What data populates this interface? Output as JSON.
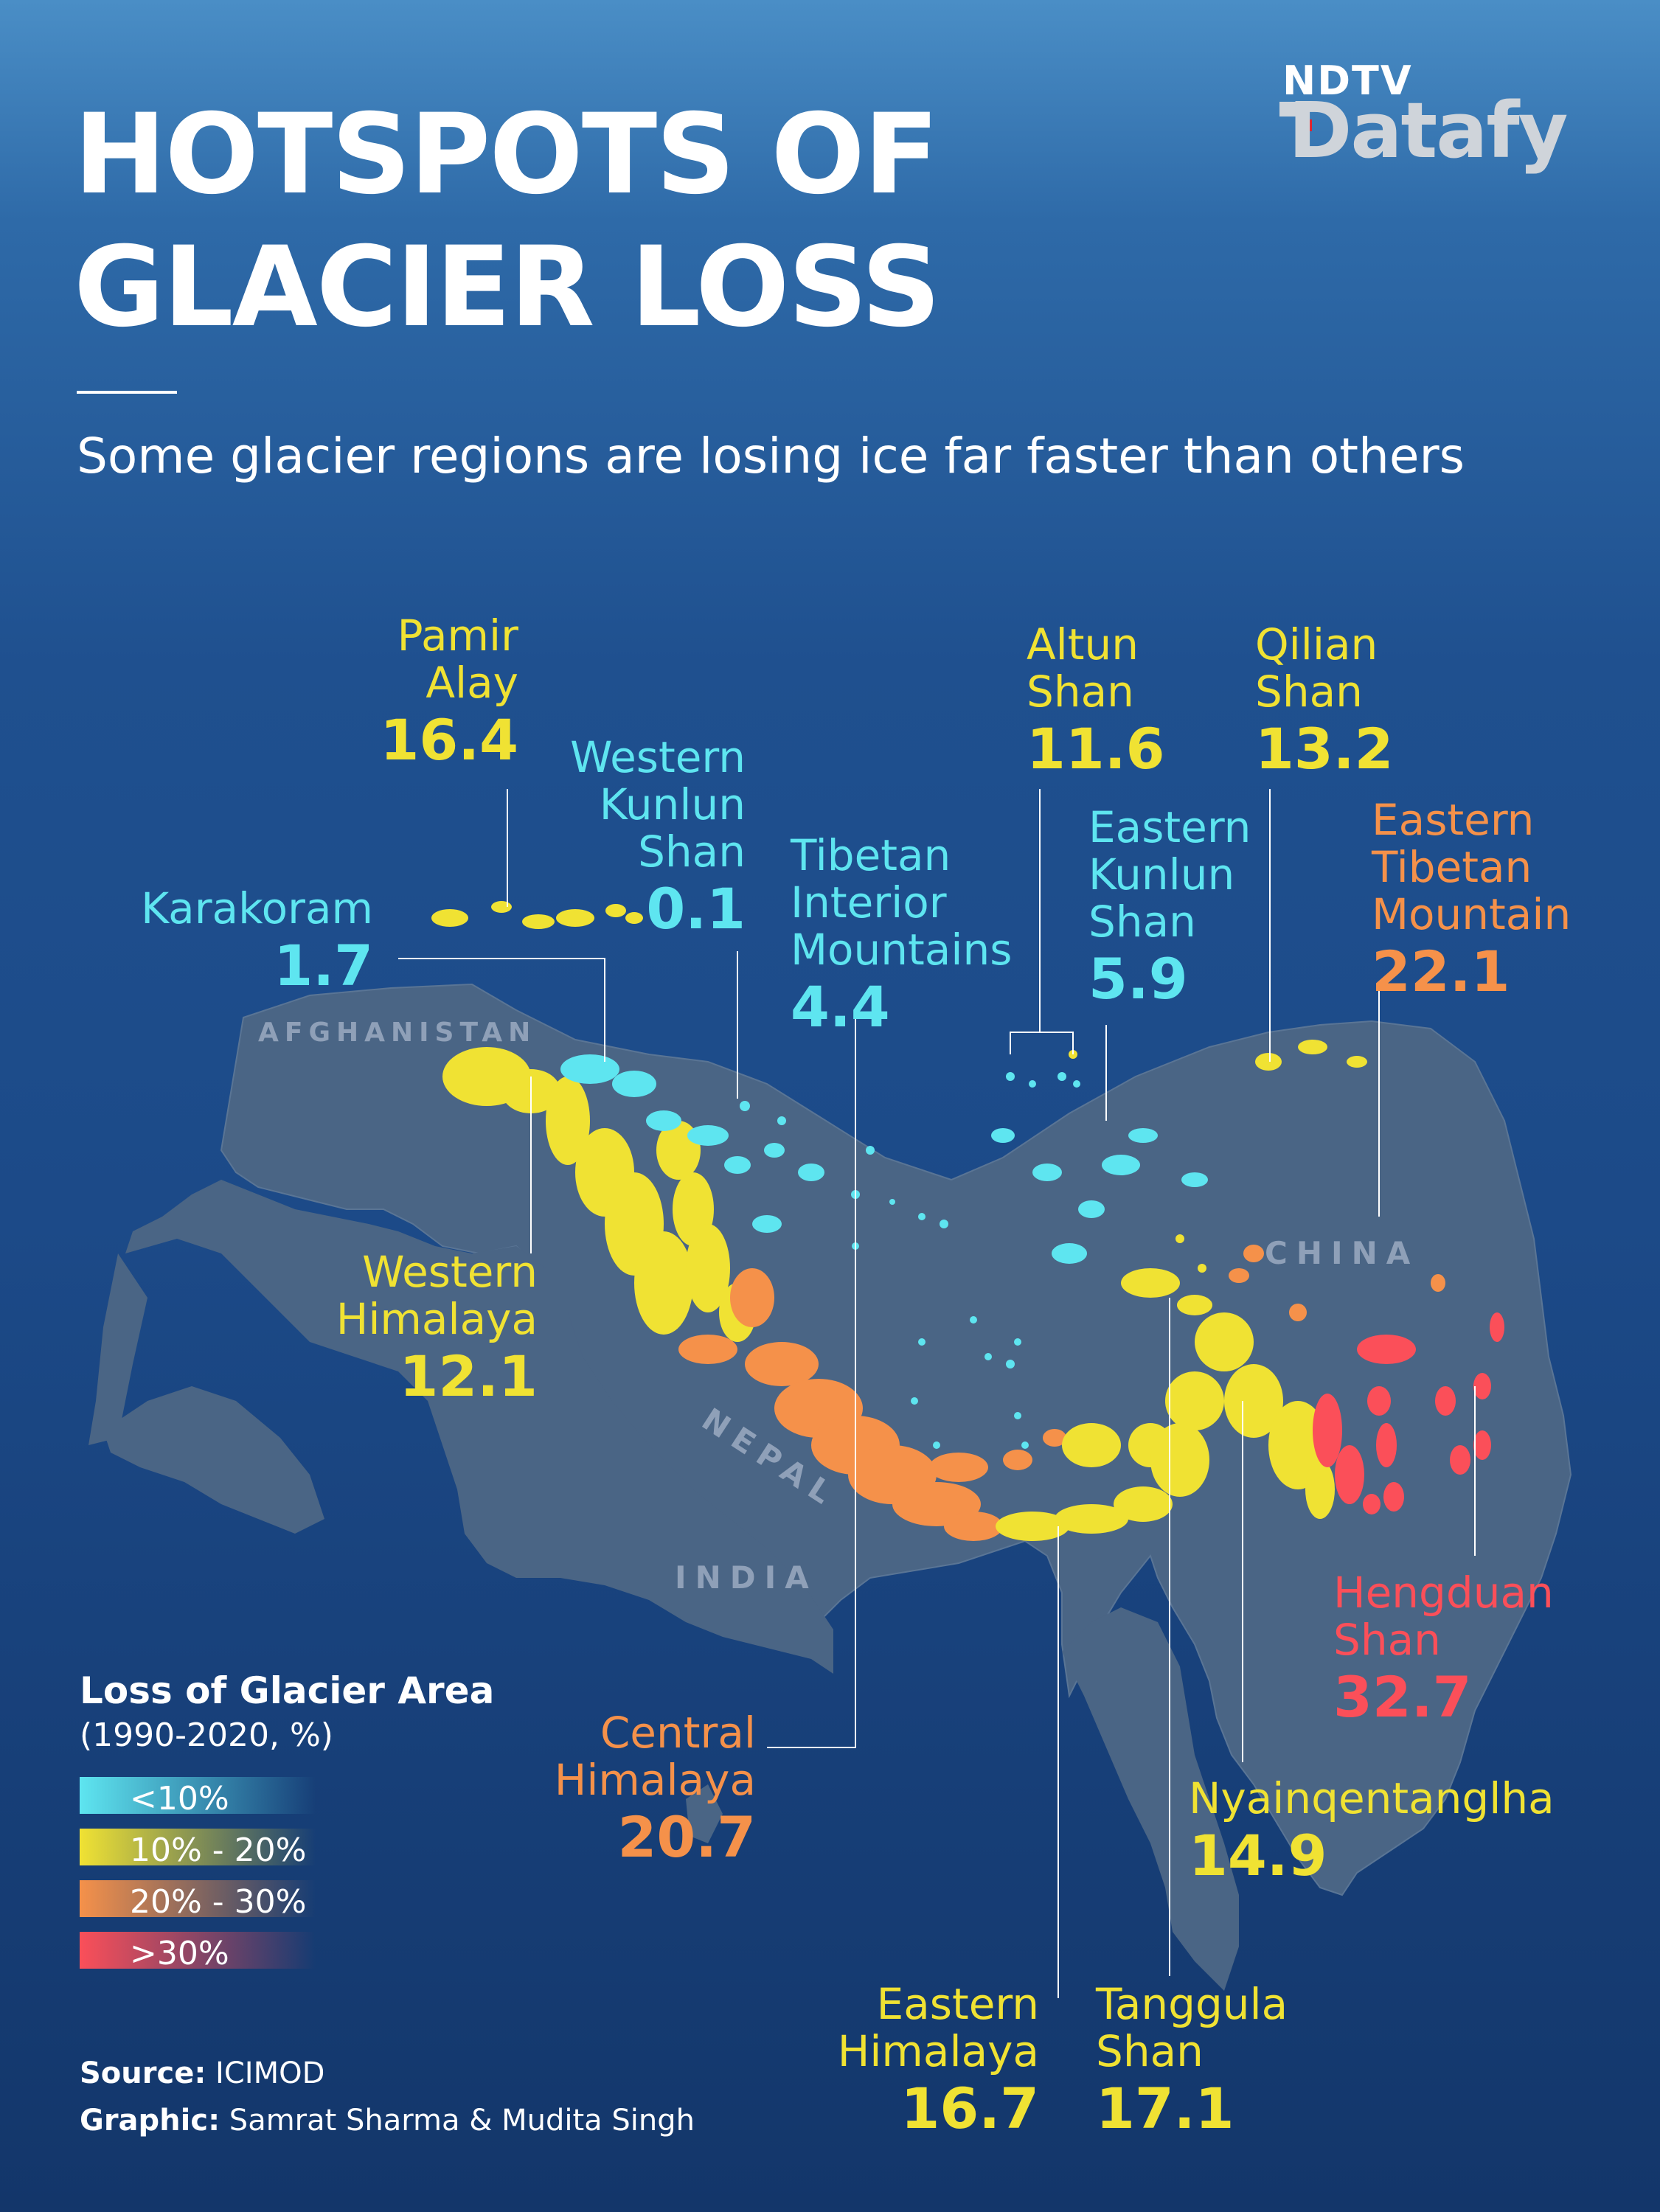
{
  "title_line1": "HOTSPOTS OF",
  "title_line2": "GLACIER LOSS",
  "subtitle": "Some glacier regions are losing ice far faster than others",
  "brand": {
    "top": "NDTV",
    "bottom": "Datafy"
  },
  "countries": {
    "afghanistan": "AFGHANISTAN",
    "china": "CHINA",
    "nepal": "NEPAL",
    "india": "INDIA"
  },
  "colors": {
    "lt10": "#5ee5f0",
    "10to20": "#f0e233",
    "20to30": "#f5914a",
    "gt30": "#fb4f59",
    "map_land": "#4a6585"
  },
  "regions": {
    "pamir_alay": {
      "name1": "Pamir",
      "name2": "Alay",
      "value": "16.4"
    },
    "western_kunlun": {
      "name1": "Western",
      "name2": "Kunlun",
      "name3": "Shan",
      "value": "0.1"
    },
    "karakoram": {
      "name1": "Karakoram",
      "value": "1.7"
    },
    "tibetan_interior": {
      "name1": "Tibetan",
      "name2": "Interior",
      "name3": "Mountains",
      "value": "4.4"
    },
    "altun_shan": {
      "name1": "Altun",
      "name2": "Shan",
      "value": "11.6"
    },
    "qilian_shan": {
      "name1": "Qilian",
      "name2": "Shan",
      "value": "13.2"
    },
    "eastern_kunlun": {
      "name1": "Eastern",
      "name2": "Kunlun",
      "name3": "Shan",
      "value": "5.9"
    },
    "eastern_tibetan": {
      "name1": "Eastern",
      "name2": "Tibetan",
      "name3": "Mountain",
      "value": "22.1"
    },
    "western_himalaya": {
      "name1": "Western",
      "name2": "Himalaya",
      "value": "12.1"
    },
    "hengduan_shan": {
      "name1": "Hengduan",
      "name2": "Shan",
      "value": "32.7"
    },
    "central_himalaya": {
      "name1": "Central",
      "name2": "Himalaya",
      "value": "20.7"
    },
    "nyainqentanglha": {
      "name1": "Nyainqentanglha",
      "value": "14.9"
    },
    "eastern_himalaya": {
      "name1": "Eastern",
      "name2": "Himalaya",
      "value": "16.7"
    },
    "tanggula_shan": {
      "name1": "Tanggula",
      "name2": "Shan",
      "value": "17.1"
    }
  },
  "legend": {
    "title": "Loss of Glacier Area",
    "subtitle": "(1990-2020, %)",
    "items": [
      "<10%",
      "10% - 20%",
      "20% - 30%",
      ">30%"
    ]
  },
  "credits": {
    "source_label": "Source:",
    "source": "ICIMOD",
    "graphic_label": "Graphic:",
    "graphic": "Samrat Sharma & Mudita Singh"
  }
}
